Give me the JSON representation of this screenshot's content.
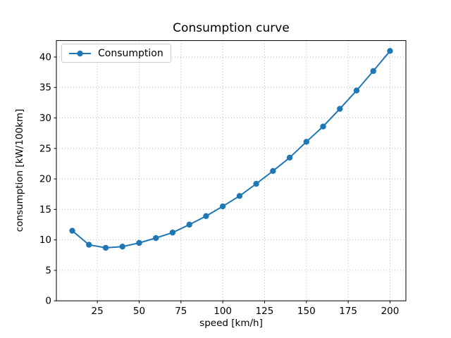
{
  "chart_data": {
    "type": "line",
    "title": "Consumption curve",
    "xlabel": "speed [km/h]",
    "ylabel": "consumption [kW/100km]",
    "xlim": [
      0.5,
      209.5
    ],
    "ylim": [
      0,
      42.7
    ],
    "xticks": [
      25,
      50,
      75,
      100,
      125,
      150,
      175,
      200
    ],
    "yticks": [
      0,
      5,
      10,
      15,
      20,
      25,
      30,
      35,
      40
    ],
    "grid": "dotted",
    "legend_position": "upper-left",
    "series": [
      {
        "name": "Consumption",
        "color": "#1f77b4",
        "marker": "circle",
        "x": [
          10,
          20,
          30,
          40,
          50,
          60,
          70,
          80,
          90,
          100,
          110,
          120,
          130,
          140,
          150,
          160,
          170,
          180,
          190,
          200
        ],
        "y": [
          11.5,
          9.2,
          8.7,
          8.9,
          9.5,
          10.3,
          11.2,
          12.5,
          13.9,
          15.5,
          17.2,
          19.2,
          21.3,
          23.5,
          26.1,
          28.6,
          31.5,
          34.5,
          37.7,
          41.0
        ]
      }
    ]
  },
  "colors": {
    "line": "#1f77b4",
    "grid": "#b8b8b8",
    "spine": "#000000",
    "text": "#000000",
    "legend_border": "#cccccc",
    "background": "#ffffff"
  }
}
